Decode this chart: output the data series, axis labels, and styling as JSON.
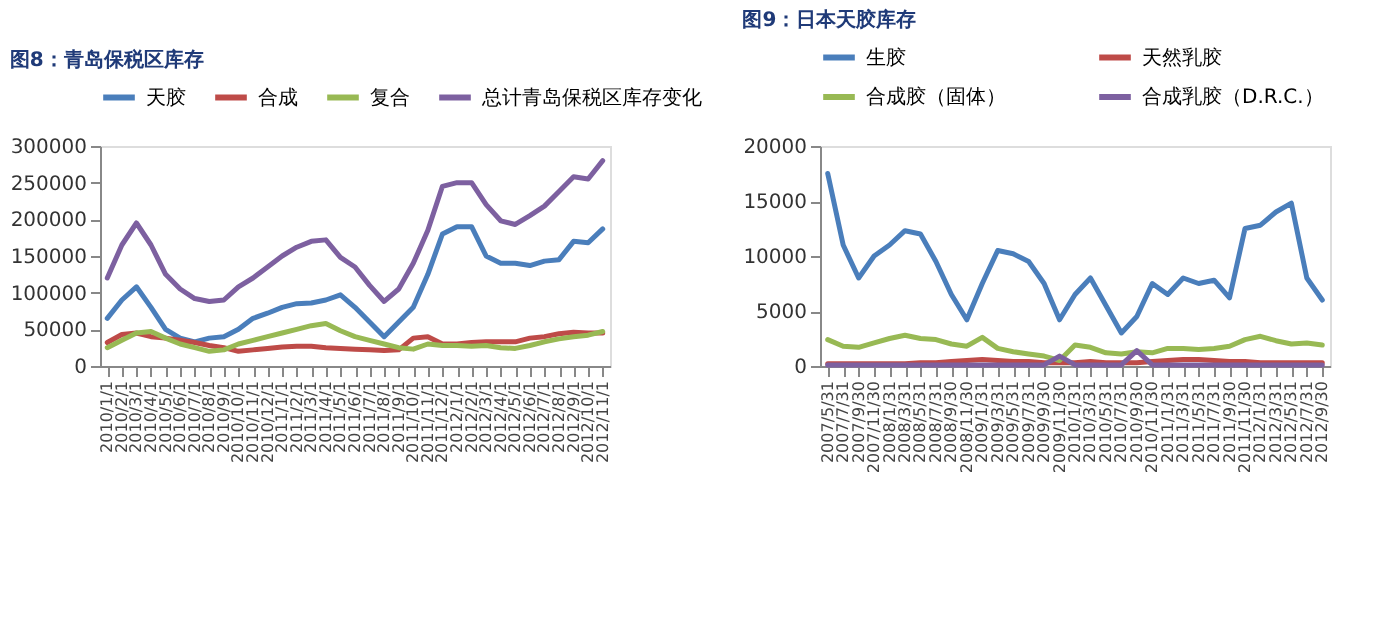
{
  "chart_data": [
    {
      "type": "line",
      "title": "图8：青岛保税区库存",
      "legend": "top",
      "grid": false,
      "categories": [
        "2010/1/1",
        "2010/2/1",
        "2010/3/1",
        "2010/4/1",
        "2010/5/1",
        "2010/6/1",
        "2010/7/1",
        "2010/8/1",
        "2010/9/1",
        "2010/10/1",
        "2010/11/1",
        "2010/12/1",
        "2011/1/1",
        "2011/2/1",
        "2011/3/1",
        "2011/4/1",
        "2011/5/1",
        "2011/6/1",
        "2011/7/1",
        "2011/8/1",
        "2011/9/1",
        "2011/10/1",
        "2011/11/1",
        "2011/12/1",
        "2012/1/1",
        "2012/2/1",
        "2012/3/1",
        "2012/4/1",
        "2012/5/1",
        "2012/6/1",
        "2012/7/1",
        "2012/8/1",
        "2012/9/1",
        "2012/10/1",
        "2012/11/1"
      ],
      "ylim": [
        0,
        300000
      ],
      "yticks": [
        0,
        50000,
        100000,
        150000,
        200000,
        250000,
        300000
      ],
      "series": [
        {
          "name": "天胶",
          "color": "#4a7ebb",
          "values": [
            65000,
            90000,
            108000,
            80000,
            50000,
            38000,
            33000,
            38000,
            40000,
            50000,
            65000,
            72000,
            80000,
            85000,
            86000,
            90000,
            97000,
            80000,
            60000,
            40000,
            60000,
            80000,
            125000,
            180000,
            190000,
            190000,
            150000,
            140000,
            140000,
            137000,
            143000,
            145000,
            170000,
            168000,
            187000
          ]
        },
        {
          "name": "合成",
          "color": "#be4b48",
          "values": [
            32000,
            43000,
            45000,
            40000,
            38000,
            35000,
            32000,
            28000,
            25000,
            20000,
            22000,
            24000,
            26000,
            27000,
            27000,
            25000,
            24000,
            23000,
            22000,
            21000,
            22000,
            38000,
            40000,
            30000,
            30000,
            32000,
            33000,
            33000,
            33000,
            38000,
            40000,
            44000,
            46000,
            45000,
            45000
          ]
        },
        {
          "name": "复合",
          "color": "#98b954",
          "values": [
            25000,
            35000,
            45000,
            47000,
            38000,
            30000,
            25000,
            20000,
            22000,
            30000,
            35000,
            40000,
            45000,
            50000,
            55000,
            58000,
            48000,
            40000,
            35000,
            30000,
            25000,
            23000,
            30000,
            28000,
            28000,
            27000,
            28000,
            25000,
            24000,
            28000,
            33000,
            37000,
            40000,
            42000,
            47000
          ]
        },
        {
          "name": "总计青岛保税区库存变化",
          "color": "#7d60a0",
          "values": [
            120000,
            165000,
            195000,
            165000,
            125000,
            105000,
            92000,
            88000,
            90000,
            108000,
            120000,
            135000,
            150000,
            162000,
            170000,
            172000,
            148000,
            135000,
            110000,
            88000,
            105000,
            140000,
            185000,
            245000,
            250000,
            250000,
            220000,
            198000,
            193000,
            205000,
            218000,
            238000,
            258000,
            255000,
            280000
          ]
        }
      ]
    },
    {
      "type": "line",
      "title": "图9：日本天胶库存",
      "legend": "top",
      "grid": false,
      "categories": [
        "2007/5/31",
        "2007/7/31",
        "2007/9/30",
        "2007/11/30",
        "2008/1/31",
        "2008/3/31",
        "2008/5/31",
        "2008/7/31",
        "2008/9/30",
        "2008/11/30",
        "2009/1/31",
        "2009/3/31",
        "2009/5/31",
        "2009/7/31",
        "2009/9/30",
        "2009/11/30",
        "2010/1/31",
        "2010/3/31",
        "2010/5/31",
        "2010/7/31",
        "2010/9/30",
        "2010/11/30",
        "2011/1/31",
        "2011/3/31",
        "2011/5/31",
        "2011/7/31",
        "2011/9/30",
        "2011/11/30",
        "2012/1/31",
        "2012/3/31",
        "2012/5/31",
        "2012/7/31",
        "2012/9/30"
      ],
      "ylim": [
        0,
        20000
      ],
      "yticks": [
        0,
        5000,
        10000,
        15000,
        20000
      ],
      "series": [
        {
          "name": "生胶",
          "color": "#4a7ebb",
          "values": [
            17500,
            11000,
            8000,
            10000,
            11000,
            12300,
            12000,
            9500,
            6500,
            4200,
            7500,
            10500,
            10200,
            9500,
            7500,
            4200,
            6500,
            8000,
            5500,
            3000,
            4500,
            7500,
            6500,
            8000,
            7500,
            7800,
            6200,
            12500,
            12800,
            14000,
            14800,
            8000,
            6000
          ]
        },
        {
          "name": "天然乳胶",
          "color": "#be4b48",
          "values": [
            200,
            200,
            200,
            200,
            200,
            200,
            300,
            300,
            400,
            500,
            600,
            500,
            400,
            400,
            300,
            300,
            300,
            400,
            300,
            300,
            300,
            400,
            500,
            600,
            600,
            500,
            400,
            400,
            300,
            300,
            300,
            300,
            300
          ]
        },
        {
          "name": "合成胶（固体）",
          "color": "#98b954",
          "values": [
            2400,
            1800,
            1700,
            2100,
            2500,
            2800,
            2500,
            2400,
            2000,
            1800,
            2600,
            1600,
            1300,
            1100,
            900,
            500,
            1900,
            1700,
            1200,
            1100,
            1300,
            1200,
            1600,
            1600,
            1500,
            1600,
            1800,
            2400,
            2700,
            2300,
            2000,
            2100,
            1900
          ]
        },
        {
          "name": "合成乳胶（D.R.C.）",
          "color": "#7d60a0",
          "values": [
            100,
            100,
            100,
            100,
            100,
            100,
            100,
            100,
            100,
            100,
            100,
            100,
            100,
            100,
            100,
            900,
            100,
            100,
            100,
            100,
            1400,
            100,
            100,
            100,
            100,
            100,
            100,
            100,
            100,
            100,
            100,
            100,
            100
          ]
        }
      ]
    }
  ]
}
